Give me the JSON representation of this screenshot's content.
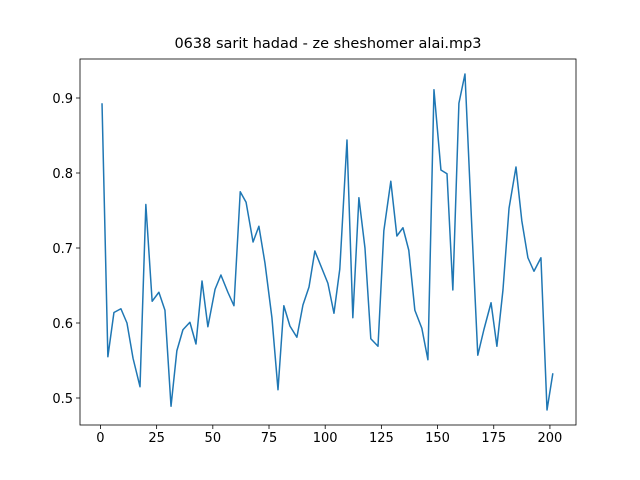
{
  "chart_data": {
    "type": "line",
    "title": "0638 sarit hadad - ze sheshomer alai.mp3",
    "x": [
      0.7,
      3.3,
      6,
      9.1,
      11.8,
      14.5,
      17.6,
      20.2,
      23,
      26,
      28.7,
      31.4,
      34,
      36.7,
      39.8,
      42.5,
      45.2,
      47.8,
      51,
      53.6,
      56.7,
      59.4,
      62.2,
      64.8,
      67.9,
      70.5,
      73.2,
      76.3,
      79,
      81.6,
      84.3,
      87.4,
      90.1,
      92.8,
      95.4,
      98.5,
      101.2,
      103.9,
      106.5,
      109.7,
      112.3,
      115,
      117.7,
      120.3,
      123.5,
      126.1,
      129.2,
      131.9,
      134.6,
      137.2,
      139.9,
      143,
      145.7,
      148.4,
      151.5,
      154.2,
      156.8,
      159.5,
      162.2,
      165.3,
      167.9,
      170.6,
      173.8,
      176.4,
      179.1,
      181.8,
      184.9,
      187.5,
      190.2,
      192.9,
      196,
      198.7,
      201.3
    ],
    "series": [
      {
        "color": "#1f77b4",
        "values": [
          0.893,
          0.555,
          0.614,
          0.619,
          0.6,
          0.553,
          0.515,
          0.758,
          0.629,
          0.641,
          0.617,
          0.489,
          0.563,
          0.591,
          0.601,
          0.572,
          0.656,
          0.595,
          0.645,
          0.664,
          0.641,
          0.623,
          0.775,
          0.761,
          0.708,
          0.729,
          0.68,
          0.607,
          0.511,
          0.623,
          0.596,
          0.581,
          0.624,
          0.648,
          0.696,
          0.673,
          0.653,
          0.613,
          0.672,
          0.844,
          0.607,
          0.767,
          0.7,
          0.579,
          0.569,
          0.723,
          0.789,
          0.716,
          0.727,
          0.697,
          0.617,
          0.593,
          0.551,
          0.911,
          0.804,
          0.799,
          0.644,
          0.893,
          0.932,
          0.724,
          0.557,
          0.591,
          0.627,
          0.569,
          0.644,
          0.753,
          0.808,
          0.736,
          0.687,
          0.669,
          0.687,
          0.484,
          0.533
        ]
      }
    ],
    "xlim": [
      -9.1,
      211.6
    ],
    "ylim": [
      0.464,
      0.952
    ],
    "xticks": [
      0,
      25,
      50,
      75,
      100,
      125,
      150,
      175,
      200
    ],
    "yticks": [
      0.5,
      0.6,
      0.7,
      0.8,
      0.9
    ]
  }
}
